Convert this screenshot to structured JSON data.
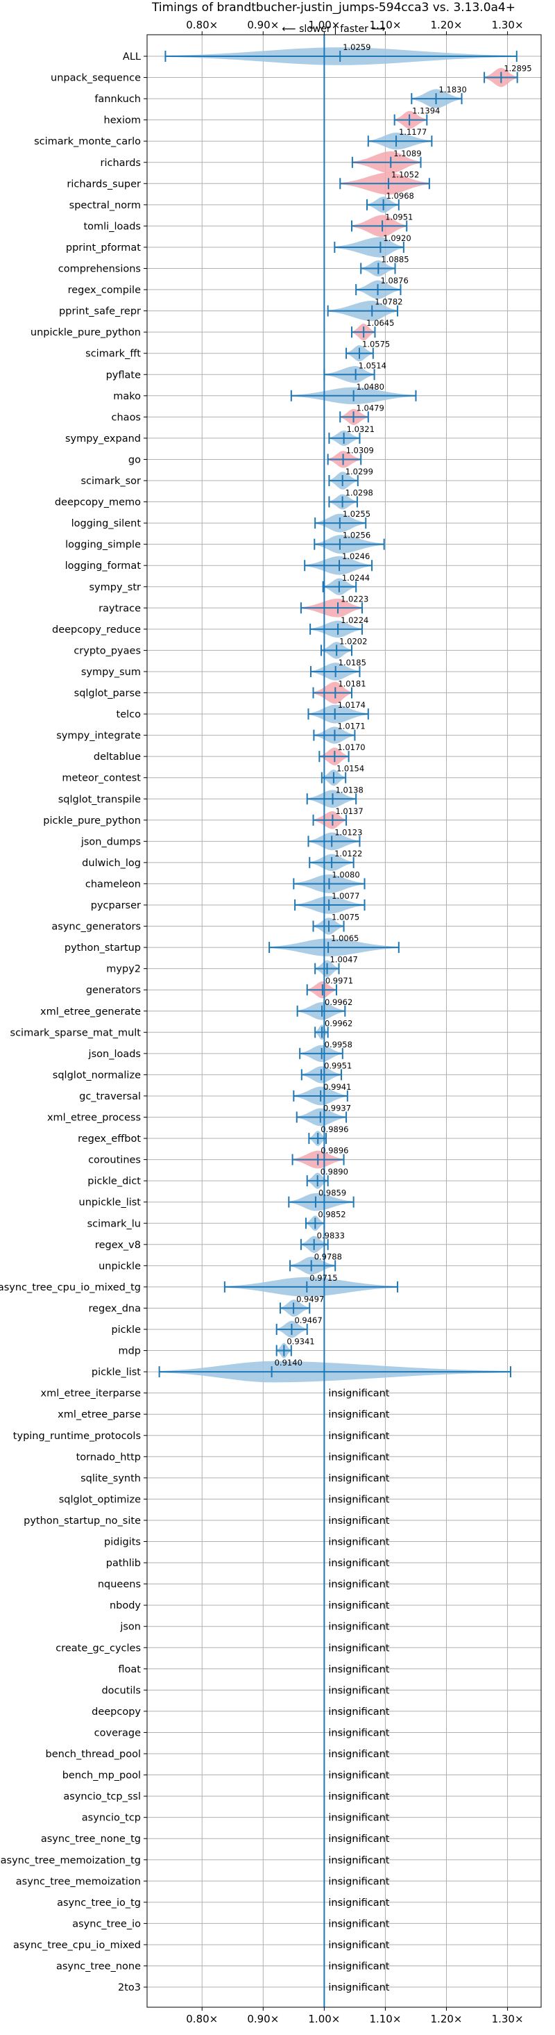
{
  "chart_data": {
    "type": "violin",
    "title": "Timings of brandtbucher-justin_jumps-594cca3 vs. 3.13.0a4+",
    "direction_label": "⟵ slower | faster ⟶",
    "xlim": [
      0.71,
      1.355
    ],
    "x_ticks": [
      0.8,
      0.9,
      1.0,
      1.1,
      1.2,
      1.3
    ],
    "x_tick_labels": [
      "0.80×",
      "0.90×",
      "1.00×",
      "1.10×",
      "1.20×",
      "1.30×"
    ],
    "reference_x": 1.0,
    "insignificant_label": "insignificant",
    "colors": {
      "faster": "#9ec4e2",
      "slower": "#f5a8ae",
      "line": "#1f77b4",
      "grid": "#b0b0b0"
    },
    "benchmarks": [
      {
        "name": "ALL",
        "value": 1.0259,
        "min": 0.74,
        "max": 1.315,
        "w": 0.42,
        "color": "faster"
      },
      {
        "name": "unpack_sequence",
        "value": 1.2895,
        "min": 1.262,
        "max": 1.316,
        "w": 0.45,
        "color": "slower"
      },
      {
        "name": "fannkuch",
        "value": 1.183,
        "min": 1.143,
        "max": 1.225,
        "w": 0.45,
        "color": "faster"
      },
      {
        "name": "hexiom",
        "value": 1.1394,
        "min": 1.115,
        "max": 1.168,
        "w": 0.42,
        "color": "slower"
      },
      {
        "name": "scimark_monte_carlo",
        "value": 1.1177,
        "min": 1.072,
        "max": 1.176,
        "w": 0.4,
        "color": "faster"
      },
      {
        "name": "richards",
        "value": 1.1089,
        "min": 1.046,
        "max": 1.158,
        "w": 0.52,
        "color": "slower"
      },
      {
        "name": "richards_super",
        "value": 1.1052,
        "min": 1.026,
        "max": 1.172,
        "w": 0.52,
        "color": "slower"
      },
      {
        "name": "spectral_norm",
        "value": 1.0968,
        "min": 1.07,
        "max": 1.122,
        "w": 0.38,
        "color": "faster"
      },
      {
        "name": "tomli_loads",
        "value": 1.0951,
        "min": 1.045,
        "max": 1.135,
        "w": 0.52,
        "color": "slower"
      },
      {
        "name": "pprint_pformat",
        "value": 1.092,
        "min": 1.017,
        "max": 1.13,
        "w": 0.48,
        "color": "faster"
      },
      {
        "name": "comprehensions",
        "value": 1.0885,
        "min": 1.06,
        "max": 1.116,
        "w": 0.38,
        "color": "faster"
      },
      {
        "name": "regex_compile",
        "value": 1.0876,
        "min": 1.052,
        "max": 1.125,
        "w": 0.44,
        "color": "faster"
      },
      {
        "name": "pprint_safe_repr",
        "value": 1.0782,
        "min": 1.006,
        "max": 1.12,
        "w": 0.48,
        "color": "faster"
      },
      {
        "name": "unpickle_pure_python",
        "value": 1.0645,
        "min": 1.045,
        "max": 1.083,
        "w": 0.4,
        "color": "slower"
      },
      {
        "name": "scimark_fft",
        "value": 1.0575,
        "min": 1.036,
        "max": 1.08,
        "w": 0.38,
        "color": "faster"
      },
      {
        "name": "pyflate",
        "value": 1.0514,
        "min": 1.0,
        "max": 1.082,
        "w": 0.4,
        "color": "faster"
      },
      {
        "name": "mako",
        "value": 1.048,
        "min": 0.946,
        "max": 1.15,
        "w": 0.4,
        "color": "faster"
      },
      {
        "name": "chaos",
        "value": 1.0479,
        "min": 1.026,
        "max": 1.072,
        "w": 0.38,
        "color": "slower"
      },
      {
        "name": "sympy_expand",
        "value": 1.0321,
        "min": 1.008,
        "max": 1.058,
        "w": 0.36,
        "color": "faster"
      },
      {
        "name": "go",
        "value": 1.0309,
        "min": 1.006,
        "max": 1.06,
        "w": 0.4,
        "color": "slower"
      },
      {
        "name": "scimark_sor",
        "value": 1.0299,
        "min": 1.008,
        "max": 1.055,
        "w": 0.42,
        "color": "faster"
      },
      {
        "name": "deepcopy_memo",
        "value": 1.0298,
        "min": 1.008,
        "max": 1.054,
        "w": 0.36,
        "color": "faster"
      },
      {
        "name": "logging_silent",
        "value": 1.0255,
        "min": 0.985,
        "max": 1.068,
        "w": 0.44,
        "color": "faster"
      },
      {
        "name": "logging_simple",
        "value": 1.0256,
        "min": 0.984,
        "max": 1.098,
        "w": 0.44,
        "color": "faster"
      },
      {
        "name": "logging_format",
        "value": 1.0246,
        "min": 0.968,
        "max": 1.078,
        "w": 0.44,
        "color": "faster"
      },
      {
        "name": "sympy_str",
        "value": 1.0244,
        "min": 0.998,
        "max": 1.052,
        "w": 0.4,
        "color": "faster"
      },
      {
        "name": "raytrace",
        "value": 1.0223,
        "min": 0.962,
        "max": 1.062,
        "w": 0.44,
        "color": "slower"
      },
      {
        "name": "deepcopy_reduce",
        "value": 1.0224,
        "min": 0.977,
        "max": 1.062,
        "w": 0.4,
        "color": "faster"
      },
      {
        "name": "crypto_pyaes",
        "value": 1.0202,
        "min": 0.995,
        "max": 1.045,
        "w": 0.4,
        "color": "faster"
      },
      {
        "name": "sympy_sum",
        "value": 1.0185,
        "min": 0.978,
        "max": 1.058,
        "w": 0.42,
        "color": "faster"
      },
      {
        "name": "sqlglot_parse",
        "value": 1.0181,
        "min": 0.982,
        "max": 1.045,
        "w": 0.52,
        "color": "slower"
      },
      {
        "name": "telco",
        "value": 1.0174,
        "min": 0.974,
        "max": 1.072,
        "w": 0.44,
        "color": "faster"
      },
      {
        "name": "sympy_integrate",
        "value": 1.0171,
        "min": 0.983,
        "max": 1.05,
        "w": 0.4,
        "color": "faster"
      },
      {
        "name": "deltablue",
        "value": 1.017,
        "min": 0.992,
        "max": 1.04,
        "w": 0.42,
        "color": "slower"
      },
      {
        "name": "meteor_contest",
        "value": 1.0154,
        "min": 0.996,
        "max": 1.035,
        "w": 0.38,
        "color": "faster"
      },
      {
        "name": "sqlglot_transpile",
        "value": 1.0138,
        "min": 0.972,
        "max": 1.052,
        "w": 0.42,
        "color": "faster"
      },
      {
        "name": "pickle_pure_python",
        "value": 1.0137,
        "min": 0.982,
        "max": 1.036,
        "w": 0.42,
        "color": "slower"
      },
      {
        "name": "json_dumps",
        "value": 1.0123,
        "min": 0.974,
        "max": 1.058,
        "w": 0.42,
        "color": "faster"
      },
      {
        "name": "dulwich_log",
        "value": 1.0122,
        "min": 0.976,
        "max": 1.048,
        "w": 0.4,
        "color": "faster"
      },
      {
        "name": "chameleon",
        "value": 1.008,
        "min": 0.95,
        "max": 1.066,
        "w": 0.44,
        "color": "faster"
      },
      {
        "name": "pycparser",
        "value": 1.0077,
        "min": 0.952,
        "max": 1.066,
        "w": 0.42,
        "color": "faster"
      },
      {
        "name": "async_generators",
        "value": 1.0075,
        "min": 0.982,
        "max": 1.032,
        "w": 0.4,
        "color": "faster"
      },
      {
        "name": "python_startup",
        "value": 1.0065,
        "min": 0.91,
        "max": 1.122,
        "w": 0.42,
        "color": "faster"
      },
      {
        "name": "mypy2",
        "value": 1.0047,
        "min": 0.985,
        "max": 1.024,
        "w": 0.4,
        "color": "faster"
      },
      {
        "name": "generators",
        "value": 0.9971,
        "min": 0.972,
        "max": 1.02,
        "w": 0.4,
        "color": "slower"
      },
      {
        "name": "xml_etree_generate",
        "value": 0.9962,
        "min": 0.956,
        "max": 1.034,
        "w": 0.42,
        "color": "faster"
      },
      {
        "name": "scimark_sparse_mat_mult",
        "value": 0.9962,
        "min": 0.985,
        "max": 1.006,
        "w": 0.36,
        "color": "faster"
      },
      {
        "name": "json_loads",
        "value": 0.9958,
        "min": 0.96,
        "max": 1.03,
        "w": 0.4,
        "color": "faster"
      },
      {
        "name": "sqlglot_normalize",
        "value": 0.9951,
        "min": 0.963,
        "max": 1.028,
        "w": 0.4,
        "color": "faster"
      },
      {
        "name": "gc_traversal",
        "value": 0.9941,
        "min": 0.95,
        "max": 1.038,
        "w": 0.44,
        "color": "faster"
      },
      {
        "name": "xml_etree_process",
        "value": 0.9937,
        "min": 0.955,
        "max": 1.036,
        "w": 0.42,
        "color": "faster"
      },
      {
        "name": "regex_effbot",
        "value": 0.9896,
        "min": 0.975,
        "max": 1.003,
        "w": 0.36,
        "color": "faster"
      },
      {
        "name": "coroutines",
        "value": 0.9896,
        "min": 0.948,
        "max": 1.032,
        "w": 0.42,
        "color": "slower"
      },
      {
        "name": "pickle_dict",
        "value": 0.989,
        "min": 0.972,
        "max": 1.006,
        "w": 0.38,
        "color": "faster"
      },
      {
        "name": "unpickle_list",
        "value": 0.9859,
        "min": 0.942,
        "max": 1.048,
        "w": 0.42,
        "color": "faster"
      },
      {
        "name": "scimark_lu",
        "value": 0.9852,
        "min": 0.97,
        "max": 1.0,
        "w": 0.36,
        "color": "faster"
      },
      {
        "name": "regex_v8",
        "value": 0.9833,
        "min": 0.962,
        "max": 1.006,
        "w": 0.4,
        "color": "faster"
      },
      {
        "name": "unpickle",
        "value": 0.9788,
        "min": 0.944,
        "max": 1.018,
        "w": 0.42,
        "color": "faster"
      },
      {
        "name": "async_tree_cpu_io_mixed_tg",
        "value": 0.9715,
        "min": 0.837,
        "max": 1.12,
        "w": 0.46,
        "color": "faster"
      },
      {
        "name": "regex_dna",
        "value": 0.9497,
        "min": 0.928,
        "max": 0.976,
        "w": 0.4,
        "color": "faster"
      },
      {
        "name": "pickle",
        "value": 0.9467,
        "min": 0.922,
        "max": 0.972,
        "w": 0.4,
        "color": "faster"
      },
      {
        "name": "mdp",
        "value": 0.9341,
        "min": 0.922,
        "max": 0.946,
        "w": 0.36,
        "color": "faster"
      },
      {
        "name": "pickle_list",
        "value": 0.914,
        "min": 0.73,
        "max": 1.305,
        "w": 0.5,
        "color": "faster"
      },
      {
        "name": "xml_etree_iterparse",
        "value": null
      },
      {
        "name": "xml_etree_parse",
        "value": null
      },
      {
        "name": "typing_runtime_protocols",
        "value": null
      },
      {
        "name": "tornado_http",
        "value": null
      },
      {
        "name": "sqlite_synth",
        "value": null
      },
      {
        "name": "sqlglot_optimize",
        "value": null
      },
      {
        "name": "python_startup_no_site",
        "value": null
      },
      {
        "name": "pidigits",
        "value": null
      },
      {
        "name": "pathlib",
        "value": null
      },
      {
        "name": "nqueens",
        "value": null
      },
      {
        "name": "nbody",
        "value": null
      },
      {
        "name": "json",
        "value": null
      },
      {
        "name": "create_gc_cycles",
        "value": null
      },
      {
        "name": "float",
        "value": null
      },
      {
        "name": "docutils",
        "value": null
      },
      {
        "name": "deepcopy",
        "value": null
      },
      {
        "name": "coverage",
        "value": null
      },
      {
        "name": "bench_thread_pool",
        "value": null
      },
      {
        "name": "bench_mp_pool",
        "value": null
      },
      {
        "name": "asyncio_tcp_ssl",
        "value": null
      },
      {
        "name": "asyncio_tcp",
        "value": null
      },
      {
        "name": "async_tree_none_tg",
        "value": null
      },
      {
        "name": "async_tree_memoization_tg",
        "value": null
      },
      {
        "name": "async_tree_memoization",
        "value": null
      },
      {
        "name": "async_tree_io_tg",
        "value": null
      },
      {
        "name": "async_tree_io",
        "value": null
      },
      {
        "name": "async_tree_cpu_io_mixed",
        "value": null
      },
      {
        "name": "async_tree_none",
        "value": null
      },
      {
        "name": "2to3",
        "value": null
      }
    ]
  }
}
